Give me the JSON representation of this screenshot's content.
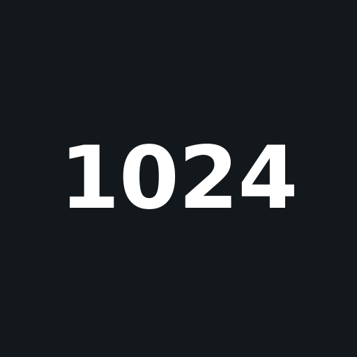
{
  "display": {
    "number": "1024",
    "background_color": "#13181d",
    "text_color": "#ffffff"
  }
}
